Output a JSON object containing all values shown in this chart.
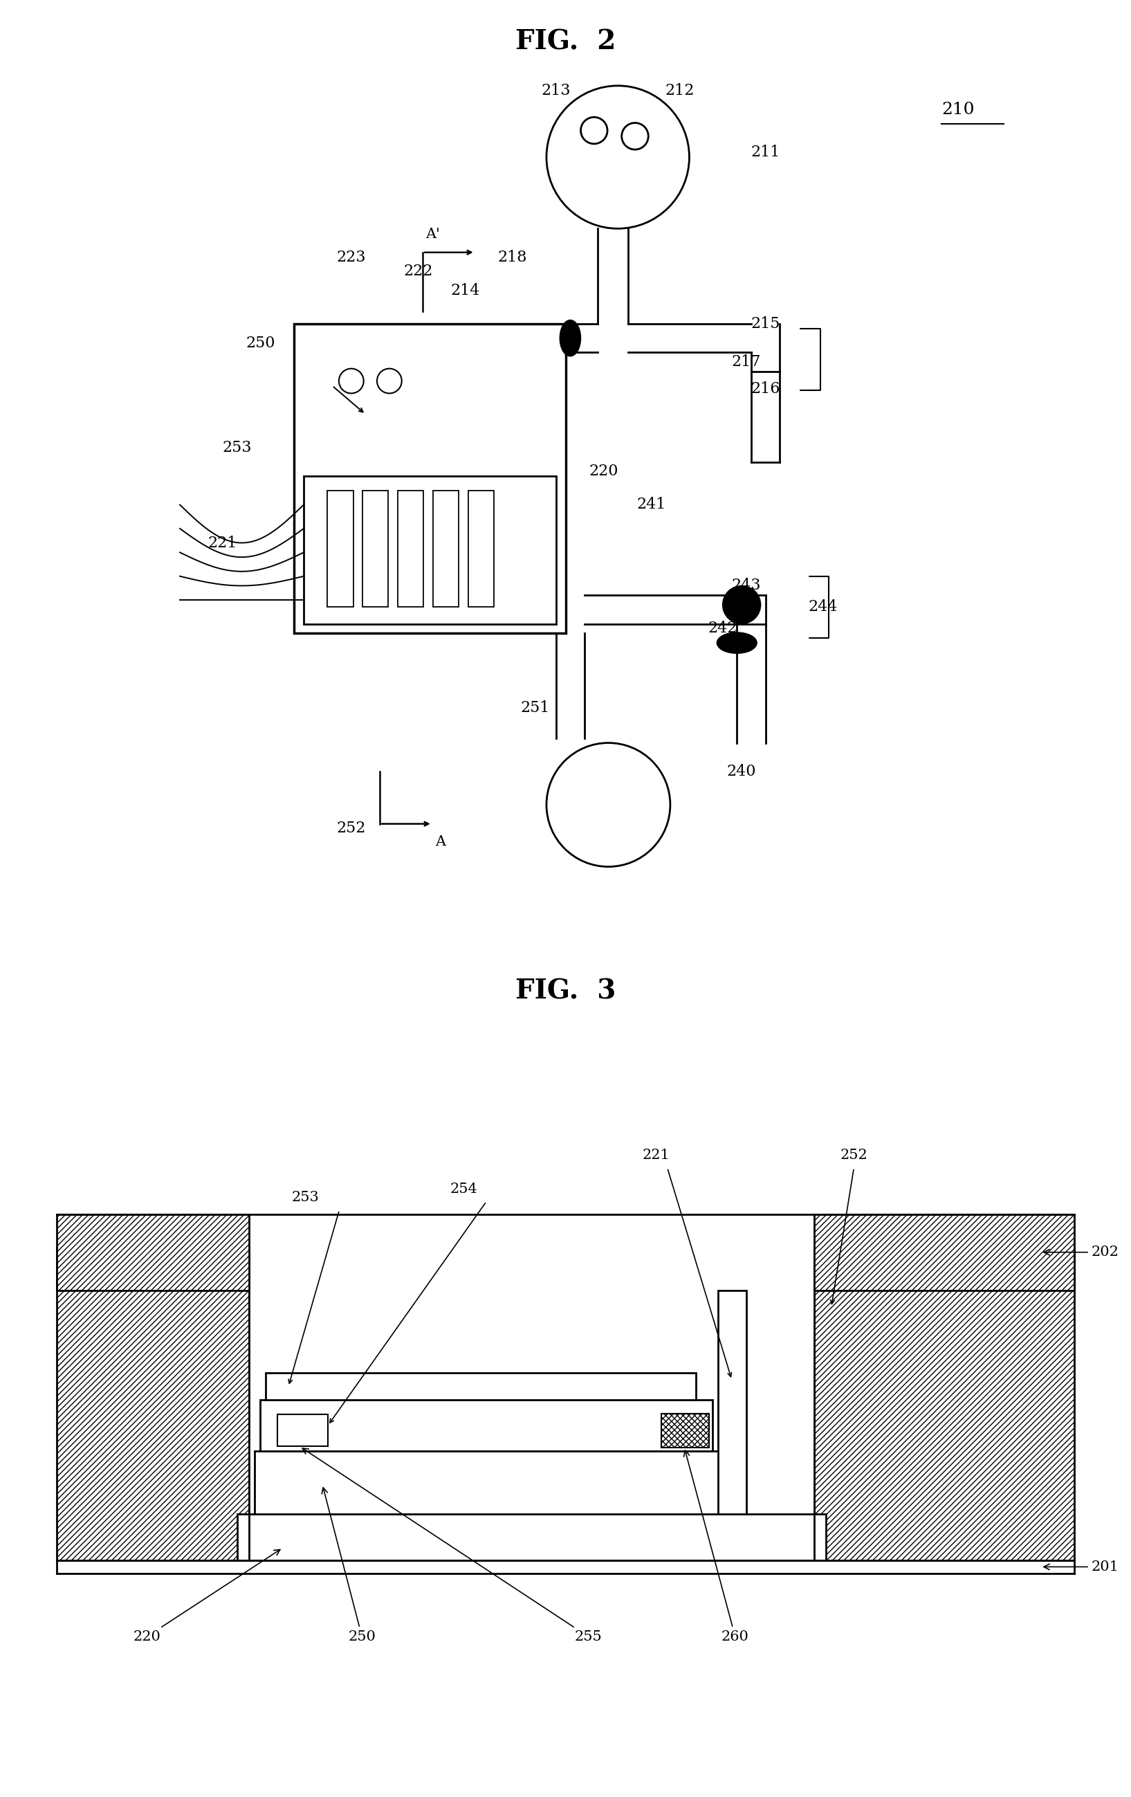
{
  "fig2_title": "FIG.  2",
  "fig3_title": "FIG.  3",
  "bg_color": "#ffffff",
  "lc": "#000000"
}
